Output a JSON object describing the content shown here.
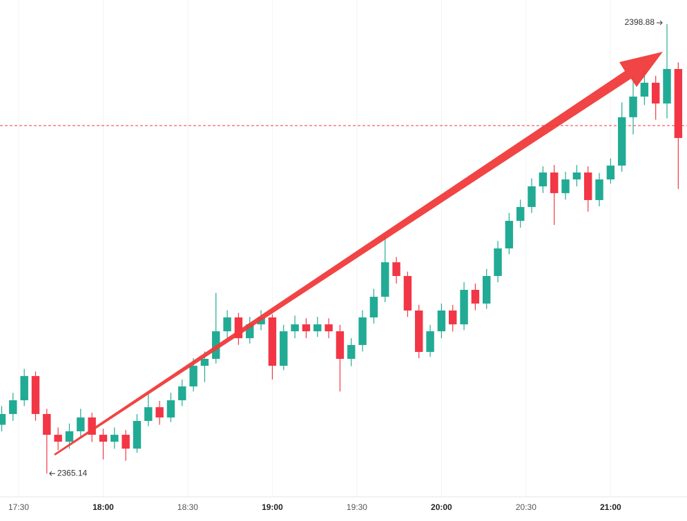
{
  "chart_data": {
    "type": "candlestick",
    "up_color": "#22ab94",
    "down_color": "#f23645",
    "x": [
      1044,
      1048,
      1052,
      1056,
      1060,
      1064,
      1068,
      1072,
      1076,
      1080,
      1084,
      1088,
      1092,
      1096,
      1100,
      1104,
      1108,
      1112,
      1116,
      1120,
      1124,
      1128,
      1132,
      1136,
      1140,
      1144,
      1148,
      1152,
      1156,
      1160,
      1164,
      1168,
      1172,
      1176,
      1180,
      1184,
      1188,
      1192,
      1196,
      1200,
      1204,
      1208,
      1212,
      1216,
      1220,
      1224,
      1228,
      1232,
      1236,
      1240,
      1244,
      1248,
      1252,
      1256,
      1260,
      1264,
      1268,
      1272,
      1276,
      1280,
      1284
    ],
    "open": [
      2368.8,
      2369.61,
      2370.64,
      2372.46,
      2369.61,
      2368.05,
      2367.53,
      2368.31,
      2369.35,
      2368.05,
      2367.53,
      2368.05,
      2367.01,
      2369.09,
      2370.12,
      2369.35,
      2370.64,
      2371.68,
      2373.23,
      2373.75,
      2375.82,
      2376.86,
      2375.3,
      2376.34,
      2376.86,
      2373.23,
      2375.82,
      2376.34,
      2375.82,
      2376.34,
      2375.82,
      2373.75,
      2374.79,
      2376.86,
      2378.41,
      2381.0,
      2379.97,
      2377.38,
      2374.27,
      2375.82,
      2377.38,
      2376.34,
      2378.93,
      2377.9,
      2379.97,
      2382.04,
      2384.11,
      2385.15,
      2386.7,
      2387.74,
      2386.19,
      2387.22,
      2387.74,
      2385.67,
      2387.22,
      2388.26,
      2391.89,
      2393.44,
      2394.48,
      2392.92,
      2395.51
    ],
    "high": [
      2370.2,
      2371.2,
      2373.0,
      2372.8,
      2370.0,
      2368.6,
      2368.9,
      2370.0,
      2369.7,
      2368.5,
      2368.6,
      2368.4,
      2369.6,
      2371.1,
      2370.6,
      2371.2,
      2372.2,
      2373.8,
      2374.3,
      2378.7,
      2377.4,
      2377.2,
      2376.9,
      2377.4,
      2377.1,
      2376.3,
      2377.0,
      2376.8,
      2376.9,
      2376.8,
      2376.3,
      2375.3,
      2377.4,
      2379.0,
      2383.0,
      2381.4,
      2380.3,
      2377.8,
      2376.3,
      2377.9,
      2377.8,
      2379.5,
      2379.4,
      2380.5,
      2382.6,
      2384.7,
      2385.7,
      2387.3,
      2388.2,
      2388.3,
      2387.8,
      2388.3,
      2388.2,
      2387.7,
      2388.8,
      2393.0,
      2395.0,
      2395.5,
      2395.0,
      2398.88,
      2396.0
    ],
    "low": [
      2368.3,
      2369.1,
      2370.2,
      2369.1,
      2365.14,
      2366.9,
      2367.0,
      2367.8,
      2367.5,
      2366.2,
      2367.0,
      2366.1,
      2366.7,
      2368.7,
      2368.8,
      2369.0,
      2370.2,
      2371.3,
      2372.0,
      2373.4,
      2375.2,
      2374.8,
      2374.9,
      2375.9,
      2372.2,
      2372.9,
      2375.3,
      2375.3,
      2375.4,
      2375.3,
      2371.3,
      2373.2,
      2374.3,
      2376.4,
      2378.0,
      2379.4,
      2376.9,
      2373.8,
      2373.9,
      2375.3,
      2375.8,
      2375.9,
      2377.4,
      2377.5,
      2379.5,
      2381.6,
      2383.6,
      2384.7,
      2386.2,
      2383.8,
      2385.7,
      2386.7,
      2384.8,
      2385.2,
      2386.9,
      2387.8,
      2390.6,
      2392.8,
      2391.7,
      2391.8,
      2386.5
    ],
    "close": [
      2369.61,
      2370.64,
      2372.46,
      2369.61,
      2368.05,
      2367.53,
      2368.31,
      2369.35,
      2368.05,
      2367.53,
      2368.05,
      2367.01,
      2369.09,
      2370.12,
      2369.35,
      2370.64,
      2371.68,
      2373.23,
      2373.75,
      2375.82,
      2376.86,
      2375.3,
      2376.34,
      2376.86,
      2373.23,
      2375.82,
      2376.34,
      2375.82,
      2376.34,
      2375.82,
      2373.75,
      2374.79,
      2376.86,
      2378.41,
      2381.0,
      2379.97,
      2377.38,
      2374.27,
      2375.82,
      2377.38,
      2376.34,
      2378.93,
      2377.9,
      2379.97,
      2382.04,
      2384.11,
      2385.15,
      2386.7,
      2387.74,
      2386.19,
      2387.22,
      2387.74,
      2385.67,
      2387.22,
      2388.26,
      2391.89,
      2393.44,
      2394.48,
      2392.92,
      2395.51,
      2390.33
    ],
    "price_line": 2391.26,
    "price_line_color": "#f23645",
    "xlim": [
      1043.39,
      1287.1
    ],
    "ylim": [
      2363.39,
      2400.69
    ],
    "xticks": [
      {
        "value": 1050,
        "label": "17:30"
      },
      {
        "value": 1080,
        "label": "18:00"
      },
      {
        "value": 1110,
        "label": "18:30"
      },
      {
        "value": 1140,
        "label": "19:00"
      },
      {
        "value": 1170,
        "label": "19:30"
      },
      {
        "value": 1200,
        "label": "20:00"
      },
      {
        "value": 1230,
        "label": "20:30"
      },
      {
        "value": 1260,
        "label": "21:00"
      }
    ]
  }
}
